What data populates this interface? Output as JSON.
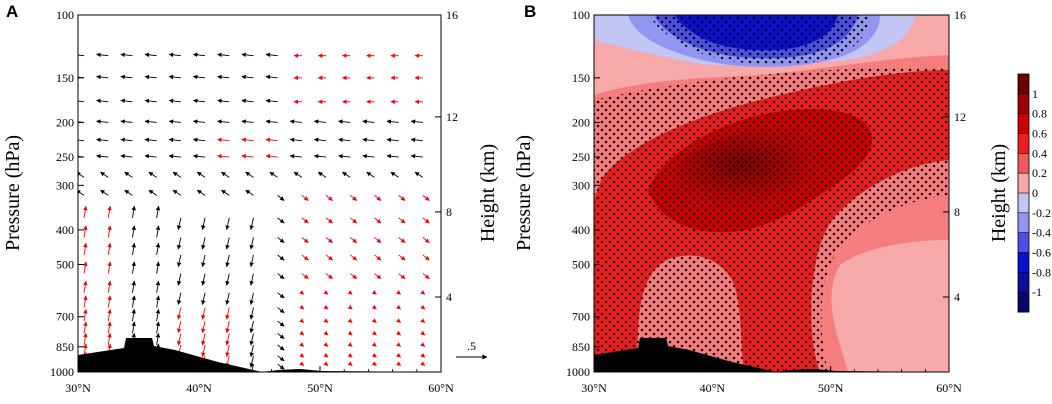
{
  "chart_data": [
    {
      "panel": "A",
      "type": "vector",
      "xlabel": "",
      "ylabel": "Pressure (hPa)",
      "ylabel_right": "Height (km)",
      "xlim": [
        30,
        60
      ],
      "ylim": [
        1000,
        100
      ],
      "xticks": [
        "30°N",
        "40°N",
        "50°N",
        "60°N"
      ],
      "xtick_values": [
        30,
        40,
        50,
        60
      ],
      "yticks": [
        100,
        150,
        200,
        250,
        300,
        400,
        500,
        700,
        850,
        1000
      ],
      "right_ticks": [
        4,
        8,
        12,
        16
      ],
      "reference_vector_label": ".5",
      "significant_color": "#ff0000",
      "nonsignificant_color": "#000000"
    },
    {
      "panel": "B",
      "type": "contour",
      "ylabel": "Pressure (hPa)",
      "ylabel_right": "Height (km)",
      "xlim": [
        30,
        60
      ],
      "ylim": [
        1000,
        100
      ],
      "xticks": [
        "30°N",
        "40°N",
        "50°N",
        "60°N"
      ],
      "xtick_values": [
        30,
        40,
        50,
        60
      ],
      "yticks": [
        100,
        150,
        200,
        250,
        300,
        400,
        500,
        700,
        850,
        1000
      ],
      "right_ticks": [
        4,
        8,
        12,
        16
      ],
      "max_center": {
        "lat": 41,
        "p": 280,
        "value": 1.0
      },
      "min_center": {
        "lat": 42,
        "p": 100,
        "value": -0.7
      },
      "colorbar_levels": [
        "1",
        "0.8",
        "0.6",
        "0.4",
        "0.2",
        "0",
        "-0.2",
        "-0.4",
        "-0.6",
        "-0.8",
        "-1"
      ],
      "colorbar_colors": [
        "#6b0000",
        "#9e0000",
        "#cc0000",
        "#ee1c1c",
        "#f45a5a",
        "#f7a9a9",
        "#c3c6f5",
        "#9296f0",
        "#4c50e0",
        "#0a10d0",
        "#0a0fa0",
        "#06086e"
      ]
    }
  ],
  "labels": {
    "panel_a": "A",
    "panel_b": "B",
    "ylabel": "Pressure (hPa)",
    "ylabel_right": "Height (km)",
    "xtick_lat": [
      "30",
      "40",
      "50",
      "60"
    ],
    "xtick_suffix": "°N",
    "ref_vector": ".5"
  }
}
